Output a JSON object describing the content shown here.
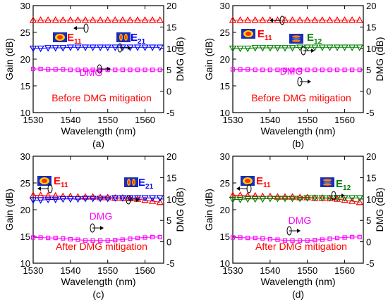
{
  "chart_data": [
    {
      "type": "line",
      "caption": "(a)",
      "xlabel": "Wavelength (nm)",
      "ylabel": "Gain (dB)",
      "y2label": "DMG (dB)",
      "xlim": [
        1530,
        1565
      ],
      "ylim": [
        10,
        30
      ],
      "y2lim": [
        -5,
        20
      ],
      "xticks": [
        1530,
        1540,
        1550,
        1560
      ],
      "yticks": [
        10,
        15,
        20,
        25,
        30
      ],
      "y2ticks": [
        -5,
        0,
        5,
        10,
        15,
        20
      ],
      "annotation": "Before DMG mitigation",
      "annotation_color": "#ff0000",
      "modes": [
        {
          "main": "E",
          "sub": "11",
          "color": "#ff0000"
        },
        {
          "main": "E",
          "sub": "21",
          "color": "#0000ff"
        }
      ],
      "dmg_label": "DMG",
      "series": [
        {
          "label_main": "E",
          "label_sub": "11",
          "axis": "left",
          "marker": "triangle-up",
          "color": "#ff0000",
          "x": [
            1530,
            1532,
            1534,
            1536,
            1538,
            1540,
            1542,
            1544,
            1546,
            1548,
            1550,
            1552,
            1554,
            1556,
            1558,
            1560,
            1562,
            1564
          ],
          "y": [
            27.3,
            27.3,
            27.3,
            27.3,
            27.3,
            27.3,
            27.3,
            27.3,
            27.3,
            27.3,
            27.3,
            27.3,
            27.3,
            27.3,
            27.3,
            27.3,
            27.3,
            27.3
          ]
        },
        {
          "label_main": "E",
          "label_sub": "21",
          "axis": "left",
          "marker": "triangle-down",
          "color": "#0000ff",
          "x": [
            1530,
            1532,
            1534,
            1536,
            1538,
            1540,
            1542,
            1544,
            1546,
            1548,
            1550,
            1552,
            1554,
            1556,
            1558,
            1560,
            1562,
            1564
          ],
          "y": [
            22.0,
            22.0,
            22.1,
            22.1,
            22.1,
            22.2,
            22.2,
            22.2,
            22.2,
            22.2,
            22.2,
            22.2,
            22.2,
            22.2,
            22.2,
            22.2,
            22.2,
            22.2
          ]
        },
        {
          "label_main": "DMG",
          "label_sub": "",
          "axis": "right",
          "marker": "square",
          "color": "#ff00ff",
          "x": [
            1530,
            1532,
            1534,
            1536,
            1538,
            1540,
            1542,
            1544,
            1546,
            1548,
            1550,
            1552,
            1554,
            1556,
            1558,
            1560,
            1562,
            1564
          ],
          "y": [
            5.2,
            5.2,
            5.1,
            5.1,
            5.1,
            5.0,
            5.0,
            5.0,
            5.0,
            5.0,
            5.0,
            5.0,
            5.0,
            5.0,
            5.0,
            5.0,
            5.0,
            5.0
          ]
        }
      ]
    },
    {
      "type": "line",
      "caption": "(b)",
      "xlabel": "Wavelength (nm)",
      "ylabel": "Gain (dB)",
      "y2label": "DMG (dB)",
      "xlim": [
        1530,
        1565
      ],
      "ylim": [
        10,
        30
      ],
      "y2lim": [
        -5,
        20
      ],
      "xticks": [
        1530,
        1540,
        1550,
        1560
      ],
      "yticks": [
        10,
        15,
        20,
        25,
        30
      ],
      "y2ticks": [
        -5,
        0,
        5,
        10,
        15,
        20
      ],
      "annotation": "Before DMG mitigation",
      "annotation_color": "#ff0000",
      "modes": [
        {
          "main": "E",
          "sub": "11",
          "color": "#ff0000"
        },
        {
          "main": "E",
          "sub": "12",
          "color": "#008000"
        }
      ],
      "dmg_label": "DMG",
      "series": [
        {
          "label_main": "E",
          "label_sub": "11",
          "axis": "left",
          "marker": "triangle-up",
          "color": "#ff0000",
          "x": [
            1530,
            1532,
            1534,
            1536,
            1538,
            1540,
            1542,
            1544,
            1546,
            1548,
            1550,
            1552,
            1554,
            1556,
            1558,
            1560,
            1562,
            1564
          ],
          "y": [
            27.3,
            27.3,
            27.3,
            27.3,
            27.3,
            27.3,
            27.3,
            27.3,
            27.3,
            27.3,
            27.3,
            27.3,
            27.3,
            27.3,
            27.3,
            27.3,
            27.3,
            27.3
          ]
        },
        {
          "label_main": "E",
          "label_sub": "12",
          "axis": "left",
          "marker": "triangle-down",
          "color": "#008000",
          "x": [
            1530,
            1532,
            1534,
            1536,
            1538,
            1540,
            1542,
            1544,
            1546,
            1548,
            1550,
            1552,
            1554,
            1556,
            1558,
            1560,
            1562,
            1564
          ],
          "y": [
            22.0,
            22.0,
            22.0,
            22.1,
            22.1,
            22.1,
            22.1,
            22.1,
            22.1,
            22.2,
            22.2,
            22.2,
            22.2,
            22.2,
            22.2,
            22.2,
            22.2,
            22.2
          ]
        },
        {
          "label_main": "DMG",
          "label_sub": "",
          "axis": "right",
          "marker": "square",
          "color": "#ff00ff",
          "x": [
            1530,
            1532,
            1534,
            1536,
            1538,
            1540,
            1542,
            1544,
            1546,
            1548,
            1550,
            1552,
            1554,
            1556,
            1558,
            1560,
            1562,
            1564
          ],
          "y": [
            5.1,
            5.1,
            5.1,
            5.0,
            5.0,
            5.0,
            5.0,
            5.0,
            5.0,
            5.0,
            5.0,
            5.0,
            5.0,
            5.0,
            5.0,
            5.0,
            5.0,
            5.0
          ]
        }
      ]
    },
    {
      "type": "line",
      "caption": "(c)",
      "xlabel": "Wavelength (nm)",
      "ylabel": "Gain (dB)",
      "y2label": "DMG (dB)",
      "xlim": [
        1530,
        1565
      ],
      "ylim": [
        10,
        30
      ],
      "y2lim": [
        -5,
        20
      ],
      "xticks": [
        1530,
        1540,
        1550,
        1560
      ],
      "yticks": [
        10,
        15,
        20,
        25,
        30
      ],
      "y2ticks": [
        -5,
        0,
        5,
        10,
        15,
        20
      ],
      "annotation": "After DMG mitigation",
      "annotation_color": "#ff0000",
      "modes": [
        {
          "main": "E",
          "sub": "11",
          "color": "#ff0000"
        },
        {
          "main": "E",
          "sub": "21",
          "color": "#0000ff"
        }
      ],
      "dmg_label": "DMG",
      "series": [
        {
          "label_main": "E",
          "label_sub": "11",
          "axis": "left",
          "marker": "triangle-up",
          "color": "#ff0000",
          "x": [
            1530,
            1532,
            1534,
            1536,
            1538,
            1540,
            1542,
            1544,
            1546,
            1548,
            1550,
            1552,
            1554,
            1556,
            1558,
            1560,
            1562,
            1564
          ],
          "y": [
            22.7,
            22.7,
            22.6,
            22.6,
            22.5,
            22.5,
            22.4,
            22.4,
            22.4,
            22.3,
            22.3,
            22.2,
            22.2,
            22.1,
            22.0,
            21.8,
            21.6,
            21.4
          ]
        },
        {
          "label_main": "E",
          "label_sub": "21",
          "axis": "left",
          "marker": "triangle-down",
          "color": "#0000ff",
          "x": [
            1530,
            1532,
            1534,
            1536,
            1538,
            1540,
            1542,
            1544,
            1546,
            1548,
            1550,
            1552,
            1554,
            1556,
            1558,
            1560,
            1562,
            1564
          ],
          "y": [
            21.8,
            21.8,
            21.9,
            21.9,
            22.0,
            22.0,
            22.0,
            22.1,
            22.1,
            22.1,
            22.1,
            22.2,
            22.2,
            22.2,
            22.2,
            22.2,
            22.2,
            22.2
          ]
        },
        {
          "label_main": "DMG",
          "label_sub": "",
          "axis": "right",
          "marker": "square",
          "color": "#ff00ff",
          "x": [
            1530,
            1532,
            1534,
            1536,
            1538,
            1540,
            1542,
            1544,
            1546,
            1548,
            1550,
            1552,
            1554,
            1556,
            1558,
            1560,
            1562,
            1564
          ],
          "y": [
            1.0,
            1.0,
            0.9,
            0.9,
            0.8,
            0.6,
            0.5,
            0.3,
            0.3,
            0.3,
            0.3,
            0.4,
            0.5,
            0.7,
            0.9,
            1.0,
            1.1,
            1.1
          ]
        }
      ]
    },
    {
      "type": "line",
      "caption": "(d)",
      "xlabel": "Wavelength (nm)",
      "ylabel": "Gain (dB)",
      "y2label": "DMG (dB)",
      "xlim": [
        1530,
        1565
      ],
      "ylim": [
        10,
        30
      ],
      "y2lim": [
        -5,
        20
      ],
      "xticks": [
        1530,
        1540,
        1550,
        1560
      ],
      "yticks": [
        10,
        15,
        20,
        25,
        30
      ],
      "y2ticks": [
        -5,
        0,
        5,
        10,
        15,
        20
      ],
      "annotation": "After DMG mitigation",
      "annotation_color": "#ff0000",
      "modes": [
        {
          "main": "E",
          "sub": "11",
          "color": "#ff0000"
        },
        {
          "main": "E",
          "sub": "12",
          "color": "#008000"
        }
      ],
      "dmg_label": "DMG",
      "series": [
        {
          "label_main": "E",
          "label_sub": "11",
          "axis": "left",
          "marker": "triangle-up",
          "color": "#ff0000",
          "x": [
            1530,
            1532,
            1534,
            1536,
            1538,
            1540,
            1542,
            1544,
            1546,
            1548,
            1550,
            1552,
            1554,
            1556,
            1558,
            1560,
            1562,
            1564
          ],
          "y": [
            22.7,
            22.7,
            22.6,
            22.6,
            22.5,
            22.5,
            22.4,
            22.4,
            22.4,
            22.3,
            22.3,
            22.2,
            22.2,
            22.1,
            22.0,
            21.8,
            21.6,
            21.4
          ]
        },
        {
          "label_main": "E",
          "label_sub": "12",
          "axis": "left",
          "marker": "triangle-down",
          "color": "#008000",
          "x": [
            1530,
            1532,
            1534,
            1536,
            1538,
            1540,
            1542,
            1544,
            1546,
            1548,
            1550,
            1552,
            1554,
            1556,
            1558,
            1560,
            1562,
            1564
          ],
          "y": [
            21.9,
            21.9,
            22.0,
            22.0,
            22.0,
            22.1,
            22.1,
            22.1,
            22.1,
            22.1,
            22.2,
            22.2,
            22.2,
            22.2,
            22.2,
            22.2,
            22.2,
            22.2
          ]
        },
        {
          "label_main": "DMG",
          "label_sub": "",
          "axis": "right",
          "marker": "square",
          "color": "#ff00ff",
          "x": [
            1530,
            1532,
            1534,
            1536,
            1538,
            1540,
            1542,
            1544,
            1546,
            1548,
            1550,
            1552,
            1554,
            1556,
            1558,
            1560,
            1562,
            1564
          ],
          "y": [
            1.0,
            1.0,
            0.9,
            0.9,
            0.8,
            0.6,
            0.5,
            0.3,
            0.3,
            0.3,
            0.3,
            0.4,
            0.5,
            0.7,
            0.9,
            1.0,
            1.1,
            1.1
          ]
        }
      ]
    }
  ]
}
